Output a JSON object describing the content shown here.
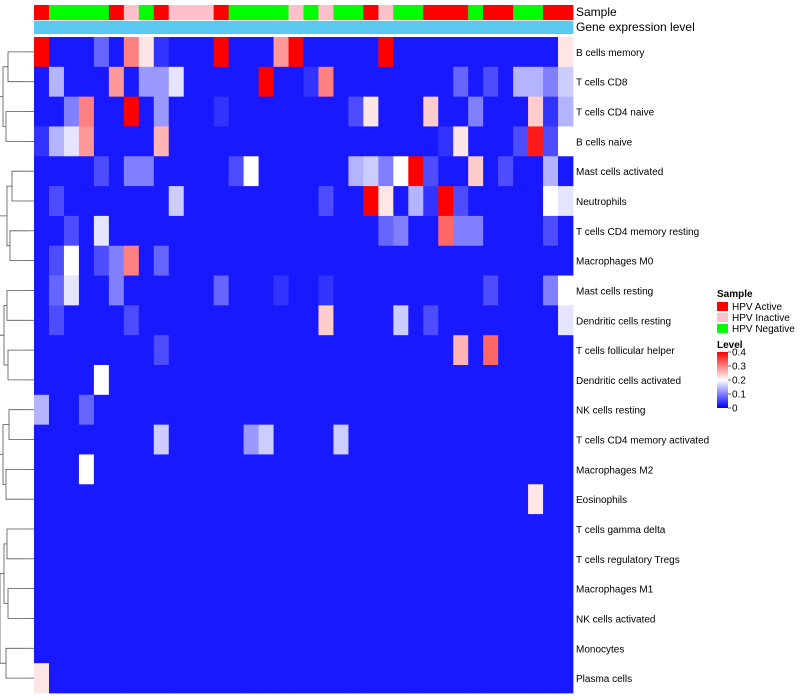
{
  "chart_data": {
    "type": "heatmap",
    "title": "",
    "annotation_tracks": [
      "Sample",
      "Gene expression level"
    ],
    "sample_legend": {
      "title": "Sample",
      "entries": [
        {
          "label": "HPV Active",
          "color": "#ff0000"
        },
        {
          "label": "HPV Inactive",
          "color": "#ffc0cb"
        },
        {
          "label": "HPV Negative",
          "color": "#00ff00"
        }
      ]
    },
    "sample_groups": [
      "Active",
      "Negative",
      "Negative",
      "Negative",
      "Negative",
      "Active",
      "Inactive",
      "Negative",
      "Active",
      "Inactive",
      "Inactive",
      "Inactive",
      "Active",
      "Negative",
      "Negative",
      "Negative",
      "Negative",
      "Inactive",
      "Negative",
      "Inactive",
      "Negative",
      "Negative",
      "Active",
      "Inactive",
      "Negative",
      "Negative",
      "Active",
      "Active",
      "Active",
      "Negative",
      "Active",
      "Active",
      "Negative",
      "Negative",
      "Active",
      "Active"
    ],
    "gene_expression_color": "#5bc8f0",
    "value_legend": {
      "title": "Level",
      "ticks": [
        0,
        0.1,
        0.2,
        0.3,
        0.4
      ],
      "tick_labels": [
        "0",
        "0.1",
        "0.2",
        "0.3",
        "0.4"
      ],
      "range": [
        0,
        0.4
      ],
      "colors": [
        "#0000ff",
        "#ffffff",
        "#ff0000"
      ]
    },
    "rows": [
      "B cells memory",
      "T cells CD8",
      "T cells CD4 naive",
      "B cells naive",
      "Mast cells activated",
      "Neutrophils",
      "T cells CD4 memory resting",
      "Macrophages M0",
      "Mast cells resting",
      "Dendritic cells resting",
      "T cells follicular helper",
      "Dendritic cells activated",
      "NK cells resting",
      "T cells CD4 memory activated",
      "Macrophages M2",
      "Eosinophils",
      "T cells gamma delta",
      "T cells regulatory  Tregs",
      "Macrophages M1",
      "NK cells activated",
      "Monocytes",
      "Plasma cells"
    ],
    "values": [
      [
        0.4,
        0.02,
        0.02,
        0.02,
        0.08,
        0.02,
        0.3,
        0.22,
        0.04,
        0.02,
        0.02,
        0.02,
        0.4,
        0.02,
        0.02,
        0.02,
        0.28,
        0.4,
        0.02,
        0.02,
        0.02,
        0.02,
        0.02,
        0.4,
        0.02,
        0.02,
        0.02,
        0.02,
        0.02,
        0.02,
        0.02,
        0.02,
        0.02,
        0.02,
        0.02,
        0.22
      ],
      [
        0.02,
        0.14,
        0.02,
        0.02,
        0.02,
        0.28,
        0.02,
        0.12,
        0.12,
        0.18,
        0.02,
        0.02,
        0.02,
        0.02,
        0.02,
        0.4,
        0.02,
        0.02,
        0.04,
        0.3,
        0.02,
        0.02,
        0.02,
        0.02,
        0.02,
        0.02,
        0.02,
        0.02,
        0.08,
        0.02,
        0.06,
        0.02,
        0.14,
        0.14,
        0.1,
        0.16
      ],
      [
        0.02,
        0.02,
        0.1,
        0.3,
        0.02,
        0.02,
        0.4,
        0.02,
        0.12,
        0.02,
        0.02,
        0.02,
        0.04,
        0.02,
        0.02,
        0.02,
        0.02,
        0.02,
        0.02,
        0.02,
        0.02,
        0.06,
        0.22,
        0.02,
        0.02,
        0.02,
        0.24,
        0.02,
        0.02,
        0.1,
        0.02,
        0.02,
        0.02,
        0.24,
        0.04,
        0.14
      ],
      [
        0.04,
        0.14,
        0.18,
        0.28,
        0.02,
        0.02,
        0.02,
        0.02,
        0.26,
        0.02,
        0.02,
        0.02,
        0.02,
        0.02,
        0.02,
        0.02,
        0.02,
        0.02,
        0.02,
        0.02,
        0.02,
        0.02,
        0.02,
        0.02,
        0.02,
        0.02,
        0.02,
        0.04,
        0.22,
        0.02,
        0.02,
        0.02,
        0.06,
        0.38,
        0.06,
        0.2
      ],
      [
        0.02,
        0.02,
        0.02,
        0.02,
        0.06,
        0.02,
        0.1,
        0.1,
        0.02,
        0.02,
        0.02,
        0.02,
        0.02,
        0.06,
        0.2,
        0.02,
        0.02,
        0.02,
        0.02,
        0.02,
        0.02,
        0.14,
        0.16,
        0.1,
        0.2,
        0.4,
        0.06,
        0.02,
        0.02,
        0.24,
        0.02,
        0.06,
        0.02,
        0.02,
        0.14,
        0.02
      ],
      [
        0.02,
        0.06,
        0.02,
        0.02,
        0.02,
        0.02,
        0.02,
        0.02,
        0.02,
        0.16,
        0.02,
        0.02,
        0.02,
        0.02,
        0.02,
        0.02,
        0.02,
        0.02,
        0.02,
        0.06,
        0.02,
        0.02,
        0.4,
        0.22,
        0.02,
        0.14,
        0.04,
        0.4,
        0.06,
        0.02,
        0.02,
        0.02,
        0.02,
        0.02,
        0.2,
        0.18
      ],
      [
        0.02,
        0.02,
        0.06,
        0.02,
        0.18,
        0.02,
        0.02,
        0.02,
        0.02,
        0.02,
        0.02,
        0.02,
        0.02,
        0.02,
        0.02,
        0.02,
        0.02,
        0.02,
        0.02,
        0.02,
        0.02,
        0.02,
        0.02,
        0.08,
        0.1,
        0.02,
        0.02,
        0.32,
        0.1,
        0.1,
        0.02,
        0.02,
        0.02,
        0.02,
        0.06,
        0.02
      ],
      [
        0.02,
        0.06,
        0.2,
        0.02,
        0.06,
        0.1,
        0.3,
        0.02,
        0.08,
        0.02,
        0.02,
        0.02,
        0.02,
        0.02,
        0.02,
        0.02,
        0.02,
        0.02,
        0.02,
        0.02,
        0.02,
        0.02,
        0.02,
        0.02,
        0.02,
        0.02,
        0.02,
        0.02,
        0.02,
        0.02,
        0.02,
        0.02,
        0.02,
        0.02,
        0.02,
        0.02
      ],
      [
        0.02,
        0.08,
        0.18,
        0.02,
        0.02,
        0.1,
        0.02,
        0.02,
        0.02,
        0.02,
        0.02,
        0.02,
        0.08,
        0.02,
        0.02,
        0.02,
        0.04,
        0.02,
        0.02,
        0.04,
        0.02,
        0.02,
        0.02,
        0.02,
        0.02,
        0.02,
        0.02,
        0.02,
        0.02,
        0.02,
        0.06,
        0.02,
        0.02,
        0.02,
        0.1,
        0.2
      ],
      [
        0.02,
        0.06,
        0.02,
        0.02,
        0.02,
        0.02,
        0.06,
        0.02,
        0.02,
        0.02,
        0.02,
        0.02,
        0.02,
        0.02,
        0.02,
        0.02,
        0.02,
        0.02,
        0.02,
        0.24,
        0.02,
        0.02,
        0.02,
        0.02,
        0.16,
        0.02,
        0.06,
        0.02,
        0.02,
        0.02,
        0.02,
        0.02,
        0.02,
        0.02,
        0.02,
        0.18
      ],
      [
        0.02,
        0.02,
        0.02,
        0.02,
        0.02,
        0.02,
        0.02,
        0.02,
        0.06,
        0.02,
        0.02,
        0.02,
        0.02,
        0.02,
        0.02,
        0.02,
        0.02,
        0.02,
        0.02,
        0.02,
        0.02,
        0.02,
        0.02,
        0.02,
        0.02,
        0.02,
        0.02,
        0.02,
        0.26,
        0.02,
        0.32,
        0.02,
        0.02,
        0.02,
        0.02,
        0.02
      ],
      [
        0.02,
        0.02,
        0.02,
        0.02,
        0.2,
        0.02,
        0.02,
        0.02,
        0.02,
        0.02,
        0.02,
        0.02,
        0.02,
        0.02,
        0.02,
        0.02,
        0.02,
        0.02,
        0.02,
        0.02,
        0.02,
        0.02,
        0.02,
        0.02,
        0.02,
        0.02,
        0.02,
        0.02,
        0.02,
        0.02,
        0.02,
        0.02,
        0.02,
        0.02,
        0.02,
        0.02
      ],
      [
        0.14,
        0.02,
        0.02,
        0.08,
        0.02,
        0.02,
        0.02,
        0.02,
        0.02,
        0.02,
        0.02,
        0.02,
        0.02,
        0.02,
        0.02,
        0.02,
        0.02,
        0.02,
        0.02,
        0.02,
        0.02,
        0.02,
        0.02,
        0.02,
        0.02,
        0.02,
        0.02,
        0.02,
        0.02,
        0.02,
        0.02,
        0.02,
        0.02,
        0.02,
        0.02,
        0.02
      ],
      [
        0.02,
        0.02,
        0.02,
        0.02,
        0.02,
        0.02,
        0.02,
        0.02,
        0.16,
        0.02,
        0.02,
        0.02,
        0.02,
        0.02,
        0.12,
        0.16,
        0.02,
        0.02,
        0.02,
        0.02,
        0.16,
        0.02,
        0.02,
        0.02,
        0.02,
        0.02,
        0.02,
        0.02,
        0.02,
        0.02,
        0.02,
        0.02,
        0.02,
        0.02,
        0.02,
        0.02
      ],
      [
        0.02,
        0.02,
        0.02,
        0.2,
        0.02,
        0.02,
        0.02,
        0.02,
        0.02,
        0.02,
        0.02,
        0.02,
        0.02,
        0.02,
        0.02,
        0.02,
        0.02,
        0.02,
        0.02,
        0.02,
        0.02,
        0.02,
        0.02,
        0.02,
        0.02,
        0.02,
        0.02,
        0.02,
        0.02,
        0.02,
        0.02,
        0.02,
        0.02,
        0.02,
        0.02,
        0.02
      ],
      [
        0.02,
        0.02,
        0.02,
        0.02,
        0.02,
        0.02,
        0.02,
        0.02,
        0.02,
        0.02,
        0.02,
        0.02,
        0.02,
        0.02,
        0.02,
        0.02,
        0.02,
        0.02,
        0.02,
        0.02,
        0.02,
        0.02,
        0.02,
        0.02,
        0.02,
        0.02,
        0.02,
        0.02,
        0.02,
        0.02,
        0.02,
        0.02,
        0.02,
        0.22,
        0.02,
        0.02
      ],
      [
        0.02,
        0.02,
        0.02,
        0.02,
        0.02,
        0.02,
        0.02,
        0.02,
        0.02,
        0.02,
        0.02,
        0.02,
        0.02,
        0.02,
        0.02,
        0.02,
        0.02,
        0.02,
        0.02,
        0.02,
        0.02,
        0.02,
        0.02,
        0.02,
        0.02,
        0.02,
        0.02,
        0.02,
        0.02,
        0.02,
        0.02,
        0.02,
        0.02,
        0.02,
        0.02,
        0.02
      ],
      [
        0.02,
        0.02,
        0.02,
        0.02,
        0.02,
        0.02,
        0.02,
        0.02,
        0.02,
        0.02,
        0.02,
        0.02,
        0.02,
        0.02,
        0.02,
        0.02,
        0.02,
        0.02,
        0.02,
        0.02,
        0.02,
        0.02,
        0.02,
        0.02,
        0.02,
        0.02,
        0.02,
        0.02,
        0.02,
        0.02,
        0.02,
        0.02,
        0.02,
        0.02,
        0.02,
        0.02
      ],
      [
        0.02,
        0.02,
        0.02,
        0.02,
        0.02,
        0.02,
        0.02,
        0.02,
        0.02,
        0.02,
        0.02,
        0.02,
        0.02,
        0.02,
        0.02,
        0.02,
        0.02,
        0.02,
        0.02,
        0.02,
        0.02,
        0.02,
        0.02,
        0.02,
        0.02,
        0.02,
        0.02,
        0.02,
        0.02,
        0.02,
        0.02,
        0.02,
        0.02,
        0.02,
        0.02,
        0.02
      ],
      [
        0.02,
        0.02,
        0.02,
        0.02,
        0.02,
        0.02,
        0.02,
        0.02,
        0.02,
        0.02,
        0.02,
        0.02,
        0.02,
        0.02,
        0.02,
        0.02,
        0.02,
        0.02,
        0.02,
        0.02,
        0.02,
        0.02,
        0.02,
        0.02,
        0.02,
        0.02,
        0.02,
        0.02,
        0.02,
        0.02,
        0.02,
        0.02,
        0.02,
        0.02,
        0.02,
        0.02
      ],
      [
        0.02,
        0.02,
        0.02,
        0.02,
        0.02,
        0.02,
        0.02,
        0.02,
        0.02,
        0.02,
        0.02,
        0.02,
        0.02,
        0.02,
        0.02,
        0.02,
        0.02,
        0.02,
        0.02,
        0.02,
        0.02,
        0.02,
        0.02,
        0.02,
        0.02,
        0.02,
        0.02,
        0.02,
        0.02,
        0.02,
        0.02,
        0.02,
        0.02,
        0.02,
        0.02,
        0.02
      ],
      [
        0.22,
        0.02,
        0.02,
        0.02,
        0.02,
        0.02,
        0.02,
        0.02,
        0.02,
        0.02,
        0.02,
        0.02,
        0.02,
        0.02,
        0.02,
        0.02,
        0.02,
        0.02,
        0.02,
        0.02,
        0.02,
        0.02,
        0.02,
        0.02,
        0.02,
        0.02,
        0.02,
        0.02,
        0.02,
        0.02,
        0.02,
        0.02,
        0.02,
        0.02,
        0.02,
        0.02
      ]
    ]
  }
}
